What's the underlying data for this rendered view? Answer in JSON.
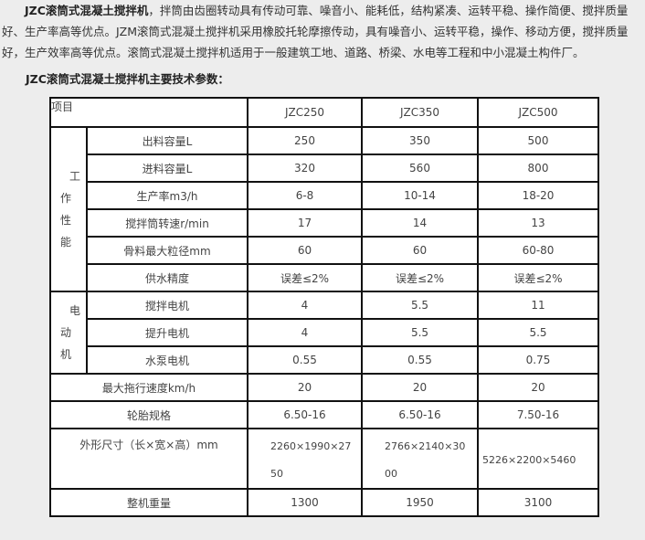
{
  "intro": {
    "bold_lead": "JZC滚筒式混凝土搅拌机",
    "text": "，拌筒由齿圈转动具有传动可靠、噪音小、能耗低，结构紧凑、运转平稳、操作简便、搅拌质量好、生产率高等优点。JZM滚筒式混凝土搅拌机采用橡胶托轮摩擦传动，具有噪音小、运转平稳，操作、移动方便，搅拌质量好，生产效率高等优点。滚筒式混凝土搅拌机适用于一般建筑工地、道路、桥梁、水电等工程和中小混凝土构件厂。"
  },
  "heading": "JZC滚筒式混凝土搅拌机主要技术参数：",
  "table": {
    "header": {
      "item": "项目",
      "models": [
        "JZC250",
        "JZC350",
        "JZC500"
      ]
    },
    "group_performance": {
      "label_chars": [
        "工",
        "作",
        "性",
        "能"
      ],
      "rows": [
        {
          "label": "出料容量L",
          "values": [
            "250",
            "350",
            "500"
          ]
        },
        {
          "label": "进料容量L",
          "values": [
            "320",
            "560",
            "800"
          ]
        },
        {
          "label": "生产率m3/h",
          "values": [
            "6-8",
            "10-14",
            "18-20"
          ]
        },
        {
          "label": "搅拌筒转速r/min",
          "values": [
            "17",
            "14",
            "13"
          ]
        },
        {
          "label": "骨料最大粒径mm",
          "values": [
            "60",
            "60",
            "60-80"
          ]
        },
        {
          "label": "供水精度",
          "values": [
            "误差≤2%",
            "误差≤2%",
            "误差≤2%"
          ]
        }
      ]
    },
    "group_motor": {
      "label_chars": [
        "电",
        "动",
        "机"
      ],
      "rows": [
        {
          "label": "搅拌电机",
          "values": [
            "4",
            "5.5",
            "11"
          ]
        },
        {
          "label": "提升电机",
          "values": [
            "4",
            "5.5",
            "5.5"
          ]
        },
        {
          "label": "水泵电机",
          "values": [
            "0.55",
            "0.55",
            "0.75"
          ]
        }
      ]
    },
    "rows": [
      {
        "label": "最大拖行速度km/h",
        "values": [
          "20",
          "20",
          "20"
        ]
      },
      {
        "label": "轮胎规格",
        "values": [
          "6.50-16",
          "6.50-16",
          "7.50-16"
        ]
      },
      {
        "label": "外形尺寸（长×宽×高）mm",
        "values": [
          "2260×1990×2750",
          "2766×2140×3000",
          "5226×2200×5460"
        ]
      },
      {
        "label": "整机重量",
        "values": [
          "1300",
          "1950",
          "3100"
        ]
      }
    ]
  }
}
